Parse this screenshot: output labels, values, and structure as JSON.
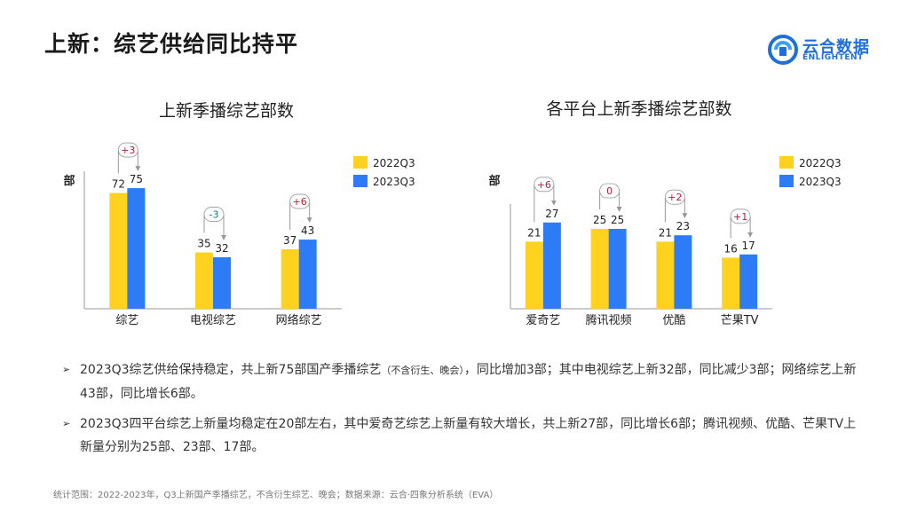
{
  "page": {
    "title": "上新：综艺供给同比持平",
    "logo": {
      "name": "云合数据",
      "sub": "ENLIGHTENT"
    }
  },
  "colors": {
    "y2022": "#FFD21F",
    "y2023": "#2E7BF6",
    "pos": "#B3203A",
    "neg": "#0F7F79",
    "axis": "#999999"
  },
  "chart_data": [
    {
      "type": "bar",
      "title": "上新季播综艺部数",
      "ylabel": "部",
      "categories": [
        "综艺",
        "电视综艺",
        "网络综艺"
      ],
      "series": [
        {
          "name": "2022Q3",
          "values": [
            72,
            35,
            37
          ]
        },
        {
          "name": "2023Q3",
          "values": [
            75,
            32,
            43
          ]
        }
      ],
      "changes": [
        "+3",
        "-3",
        "+6"
      ],
      "ylim": [
        0,
        80
      ],
      "grid": false,
      "legend": "top-right"
    },
    {
      "type": "bar",
      "title": "各平台上新季播综艺部数",
      "ylabel": "部",
      "categories": [
        "爱奇艺",
        "腾讯视频",
        "优酷",
        "芒果TV"
      ],
      "series": [
        {
          "name": "2022Q3",
          "values": [
            21,
            25,
            21,
            16
          ]
        },
        {
          "name": "2023Q3",
          "values": [
            27,
            25,
            23,
            17
          ]
        }
      ],
      "changes": [
        "+6",
        "0",
        "+2",
        "+1"
      ],
      "ylim": [
        0,
        30
      ],
      "grid": false,
      "legend": "top-right"
    }
  ],
  "bullets": [
    {
      "pre": "2023Q3综艺供给保持稳定，共上新75部国产季播综艺",
      "small": "（不含衍生、晚会）",
      "post": "，同比增加3部；其中电视综艺上新32部，同比减少3部；网络综艺上新43部，同比增长6部。"
    },
    {
      "pre": "2023Q3四平台综艺上新量均稳定在20部左右，其中爱奇艺综艺上新量有较大增长，共上新27部，同比增长6部；腾讯视频、优酷、芒果TV上新量分别为25部、23部、17部。",
      "small": "",
      "post": ""
    }
  ],
  "footnote": "统计范围：2022-2023年，Q3上新国产季播综艺，不含衍生综艺、晚会；数据来源：云合·四象分析系统（EVA）",
  "icons": {
    "bullet": "arrow-right-icon",
    "logo": "enlightent-logo-icon"
  }
}
